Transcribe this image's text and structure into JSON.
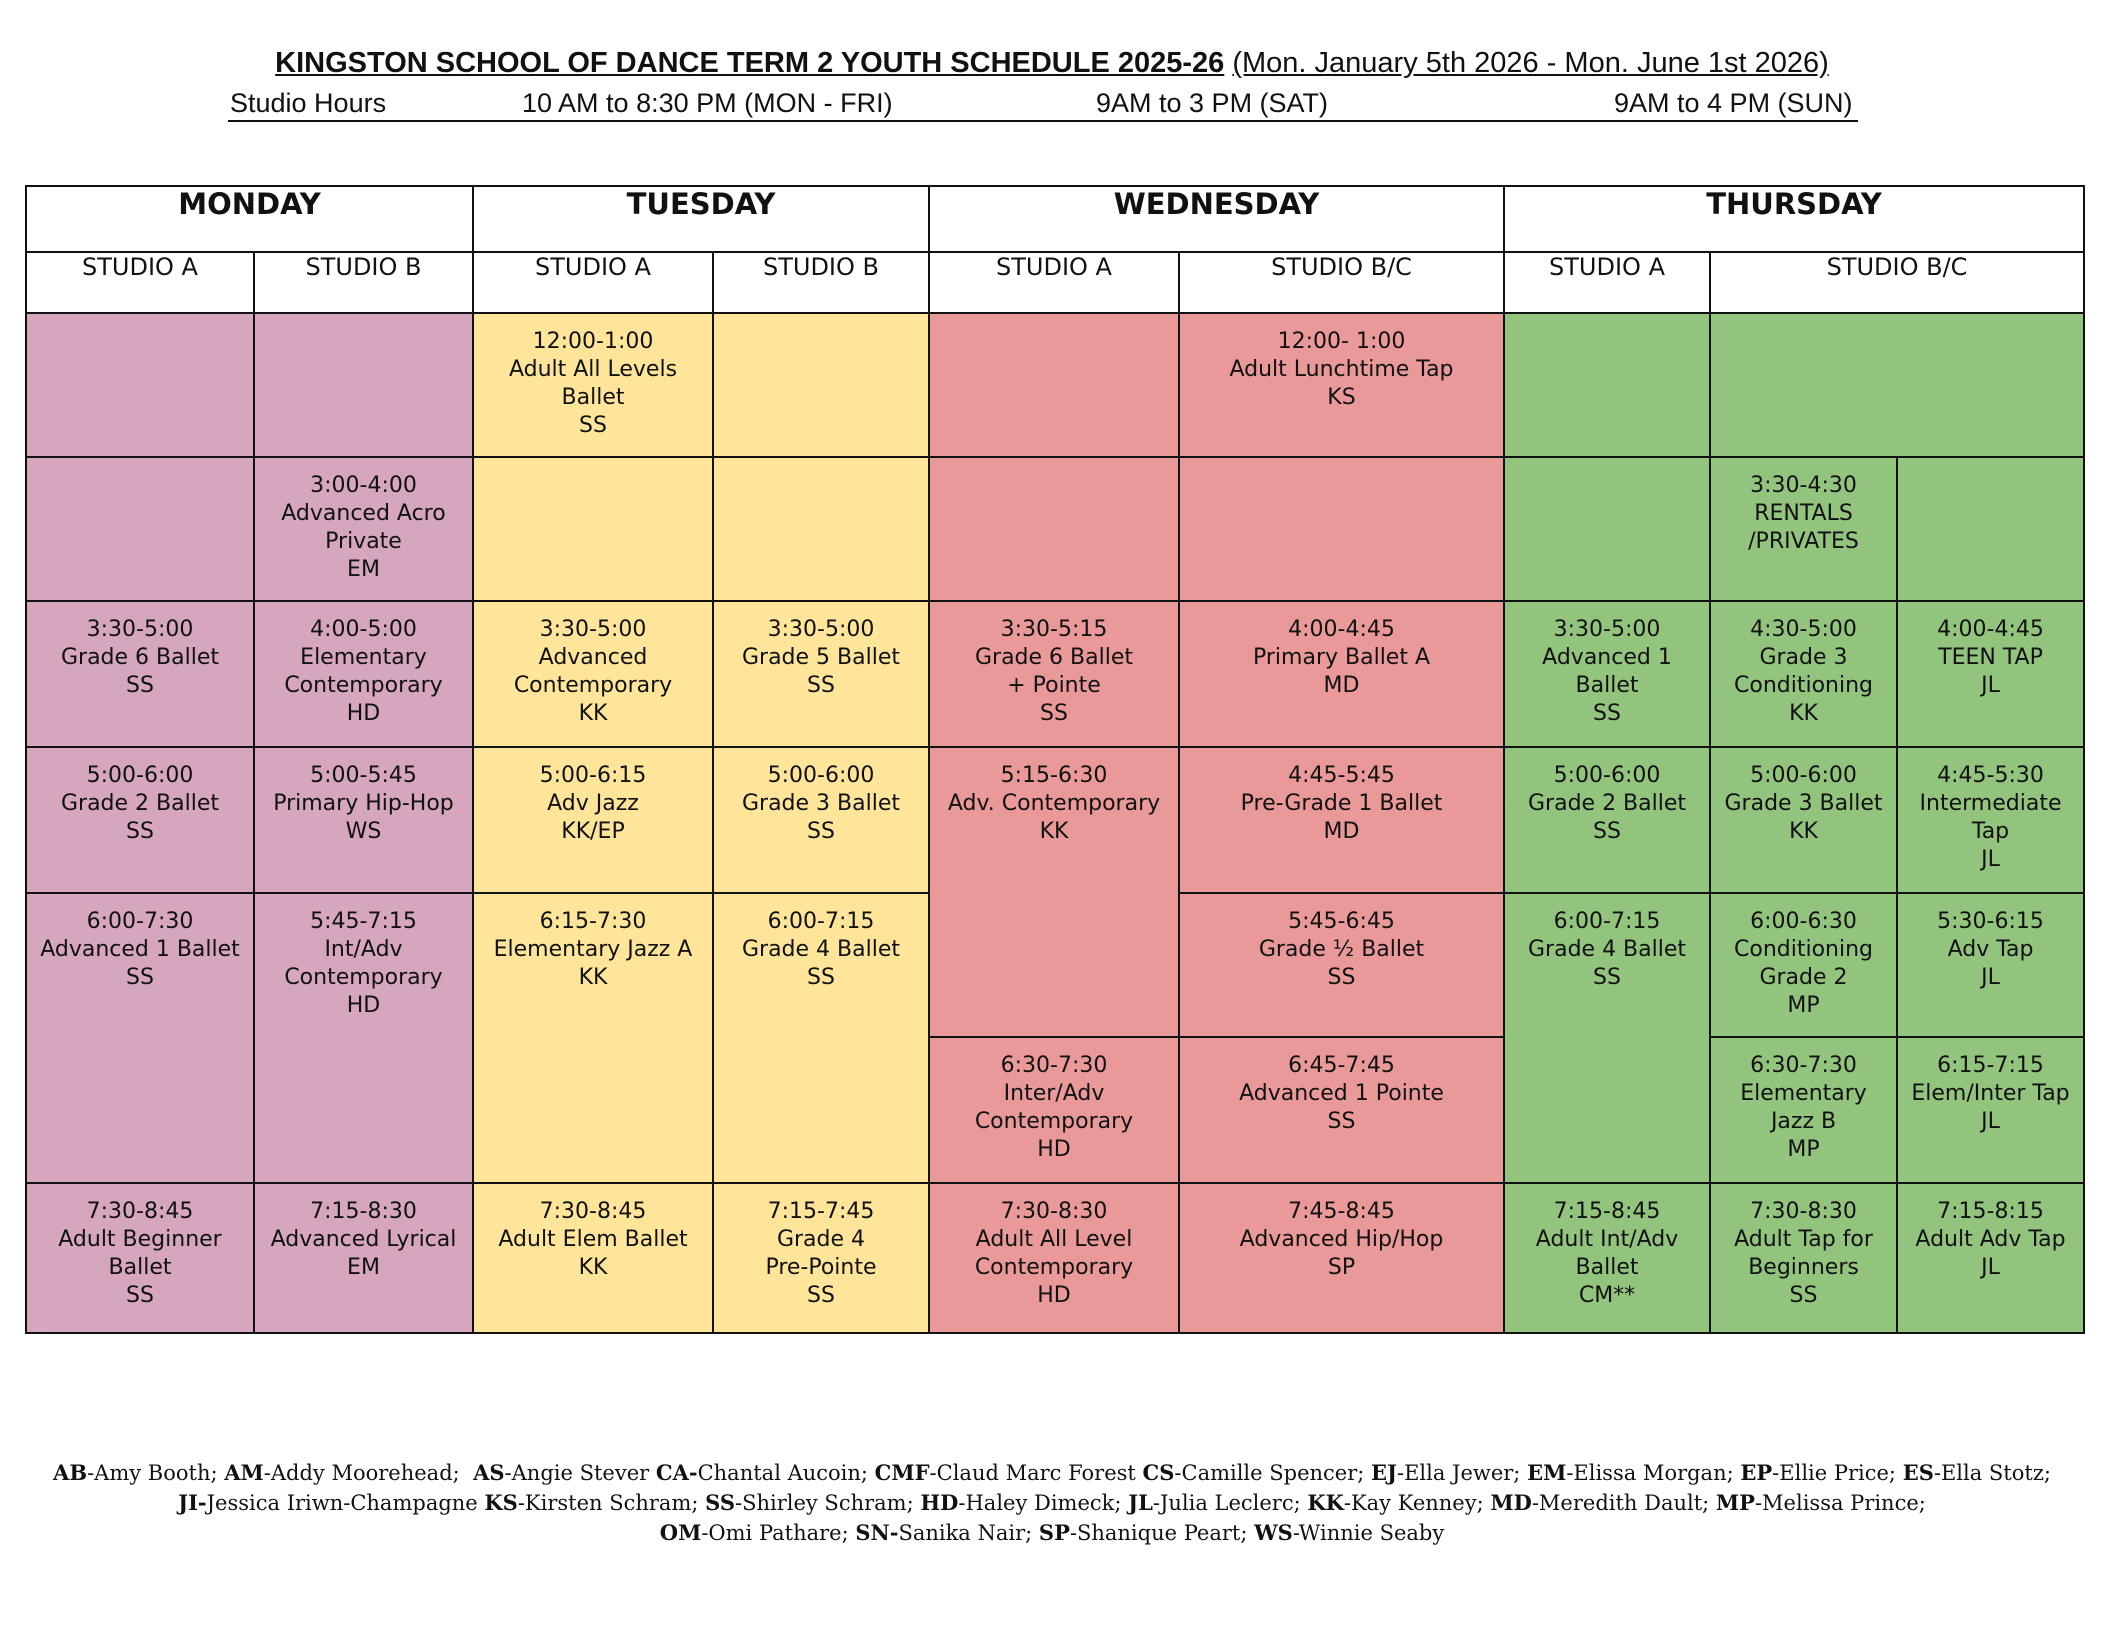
{
  "header": {
    "title": "KINGSTON SCHOOL OF DANCE TERM 2 YOUTH SCHEDULE 2025-26",
    "date_range": "(Mon. January 5th 2026 -  Mon. June 1st  2026)",
    "hours_label": "Studio Hours",
    "hours_weekday": "10 AM to 8:30 PM (MON - FRI)",
    "hours_sat": "9AM to 3 PM (SAT)",
    "hours_sun": "9AM to 4 PM (SUN)"
  },
  "days": [
    "MONDAY",
    "TUESDAY",
    "WEDNESDAY",
    "THURSDAY"
  ],
  "studios": [
    "STUDIO A",
    "STUDIO B",
    "STUDIO A",
    "STUDIO B",
    "STUDIO A",
    "STUDIO B/C",
    "STUDIO A",
    "STUDIO B/C"
  ],
  "colors": {
    "monday": "#d5a6bd",
    "tuesday": "#ffe599",
    "wednesday": "#ea9999",
    "thursday": "#93c47d"
  },
  "classes": {
    "tue_a_1": [
      "12:00-1:00",
      "Adult All Levels",
      "Ballet",
      "SS"
    ],
    "wed_bc_1": [
      "12:00- 1:00",
      "Adult Lunchtime Tap",
      "KS"
    ],
    "mon_b_2": [
      "3:00-4:00",
      "Advanced Acro",
      "Private",
      "EM"
    ],
    "thu_b_2": [
      "3:30-4:30",
      "RENTALS",
      "/PRIVATES"
    ],
    "mon_a_3": [
      "3:30-5:00",
      "Grade 6 Ballet",
      "SS"
    ],
    "mon_b_3": [
      "4:00-5:00",
      "Elementary",
      "Contemporary",
      "HD"
    ],
    "tue_a_3": [
      "3:30-5:00",
      "Advanced",
      "Contemporary",
      "KK"
    ],
    "tue_b_3": [
      "3:30-5:00",
      "Grade 5 Ballet",
      "SS"
    ],
    "wed_a_3": [
      "3:30-5:15",
      "Grade 6 Ballet",
      "+ Pointe",
      "SS"
    ],
    "wed_bc_3": [
      "4:00-4:45",
      "Primary Ballet A",
      "MD"
    ],
    "thu_a_3": [
      "3:30-5:00",
      "Advanced 1",
      "Ballet",
      "SS"
    ],
    "thu_b_3": [
      "4:30-5:00",
      "Grade 3",
      "Conditioning",
      "KK"
    ],
    "thu_c_3": [
      "4:00-4:45",
      "TEEN TAP",
      "JL"
    ],
    "mon_a_4": [
      "5:00-6:00",
      "Grade 2 Ballet",
      "SS"
    ],
    "mon_b_4": [
      "5:00-5:45",
      "Primary Hip-Hop",
      "WS"
    ],
    "tue_a_4": [
      "5:00-6:15",
      "Adv Jazz",
      "KK/EP"
    ],
    "tue_b_4": [
      "5:00-6:00",
      "Grade 3 Ballet",
      "SS"
    ],
    "wed_a_4": [
      "5:15-6:30",
      "Adv. Contemporary",
      "KK"
    ],
    "wed_bc_4": [
      "4:45-5:45",
      "Pre-Grade 1 Ballet",
      "MD"
    ],
    "thu_a_4": [
      "5:00-6:00",
      "Grade 2 Ballet",
      "SS"
    ],
    "thu_b_4": [
      "5:00-6:00",
      "Grade 3 Ballet",
      "KK"
    ],
    "thu_c_4": [
      "4:45-5:30",
      "Intermediate",
      "Tap",
      "JL"
    ],
    "mon_a_5": [
      "6:00-7:30",
      "Advanced 1 Ballet",
      "SS"
    ],
    "mon_b_5": [
      "5:45-7:15",
      "Int/Adv",
      "Contemporary",
      "HD"
    ],
    "tue_a_5": [
      "6:15-7:30",
      "Elementary Jazz A",
      "KK"
    ],
    "tue_b_5": [
      "6:00-7:15",
      "Grade 4 Ballet",
      "SS"
    ],
    "wed_bc_5": [
      "5:45-6:45",
      "Grade ½ Ballet",
      "SS"
    ],
    "thu_a_5": [
      "6:00-7:15",
      "Grade 4 Ballet",
      "SS"
    ],
    "thu_b_5": [
      "6:00-6:30",
      "Conditioning",
      "Grade 2",
      "MP"
    ],
    "thu_c_5": [
      "5:30-6:15",
      "Adv Tap",
      "JL"
    ],
    "wed_a_6": [
      "6:30-7:30",
      "Inter/Adv",
      "Contemporary",
      "HD"
    ],
    "wed_bc_6": [
      "6:45-7:45",
      "Advanced 1 Pointe",
      "SS"
    ],
    "thu_b_6": [
      "6:30-7:30",
      "Elementary",
      "Jazz B",
      "MP"
    ],
    "thu_c_6": [
      "6:15-7:15",
      "Elem/Inter Tap",
      "JL"
    ],
    "mon_a_7": [
      "7:30-8:45",
      "Adult Beginner",
      "Ballet",
      "SS"
    ],
    "mon_b_7": [
      "7:15-8:30",
      "Advanced Lyrical",
      "EM"
    ],
    "tue_a_7": [
      "7:30-8:45",
      "Adult Elem Ballet",
      "KK"
    ],
    "tue_b_7": [
      "7:15-7:45",
      "Grade 4",
      "Pre-Pointe",
      "SS"
    ],
    "wed_a_7": [
      "7:30-8:30",
      "Adult All Level",
      "Contemporary",
      "HD"
    ],
    "wed_bc_7": [
      "7:45-8:45",
      "Advanced Hip/Hop",
      "SP"
    ],
    "thu_a_7": [
      "7:15-8:45",
      "Adult Int/Adv",
      "Ballet",
      "CM**"
    ],
    "thu_b_7": [
      "7:30-8:30",
      "Adult Tap for",
      "Beginners",
      "SS"
    ],
    "thu_c_7": [
      "7:15-8:15",
      "Adult Adv Tap",
      "JL"
    ]
  },
  "legend": [
    [
      {
        "code": "AB",
        "name": "-Amy Booth; "
      },
      {
        "code": "AM",
        "name": "-Addy Moorehead;  "
      },
      {
        "code": "AS",
        "name": "-Angie Stever "
      },
      {
        "code": "CA-",
        "name": "Chantal Aucoin; "
      },
      {
        "code": "CMF",
        "name": "-Claud Marc Forest "
      },
      {
        "code": "CS",
        "name": "-Camille Spencer; "
      },
      {
        "code": "EJ",
        "name": "-Ella Jewer; "
      },
      {
        "code": "EM",
        "name": "-Elissa Morgan; "
      },
      {
        "code": "EP",
        "name": "-Ellie Price; "
      },
      {
        "code": "ES",
        "name": "-Ella Stotz;"
      }
    ],
    [
      {
        "code": "JI-",
        "name": "Jessica Iriwn-Champagne "
      },
      {
        "code": "KS",
        "name": "-Kirsten Schram; "
      },
      {
        "code": "SS",
        "name": "-Shirley Schram; "
      },
      {
        "code": "HD",
        "name": "-Haley Dimeck; "
      },
      {
        "code": "JL",
        "name": "-Julia Leclerc; "
      },
      {
        "code": "KK",
        "name": "-Kay Kenney; "
      },
      {
        "code": "MD",
        "name": "-Meredith Dault; "
      },
      {
        "code": "MP",
        "name": "-Melissa Prince;"
      }
    ],
    [
      {
        "code": "OM",
        "name": "-Omi Pathare; "
      },
      {
        "code": "SN-",
        "name": "Sanika Nair; "
      },
      {
        "code": "SP",
        "name": "-Shanique Peart; "
      },
      {
        "code": "WS",
        "name": "-Winnie Seaby"
      }
    ]
  ]
}
